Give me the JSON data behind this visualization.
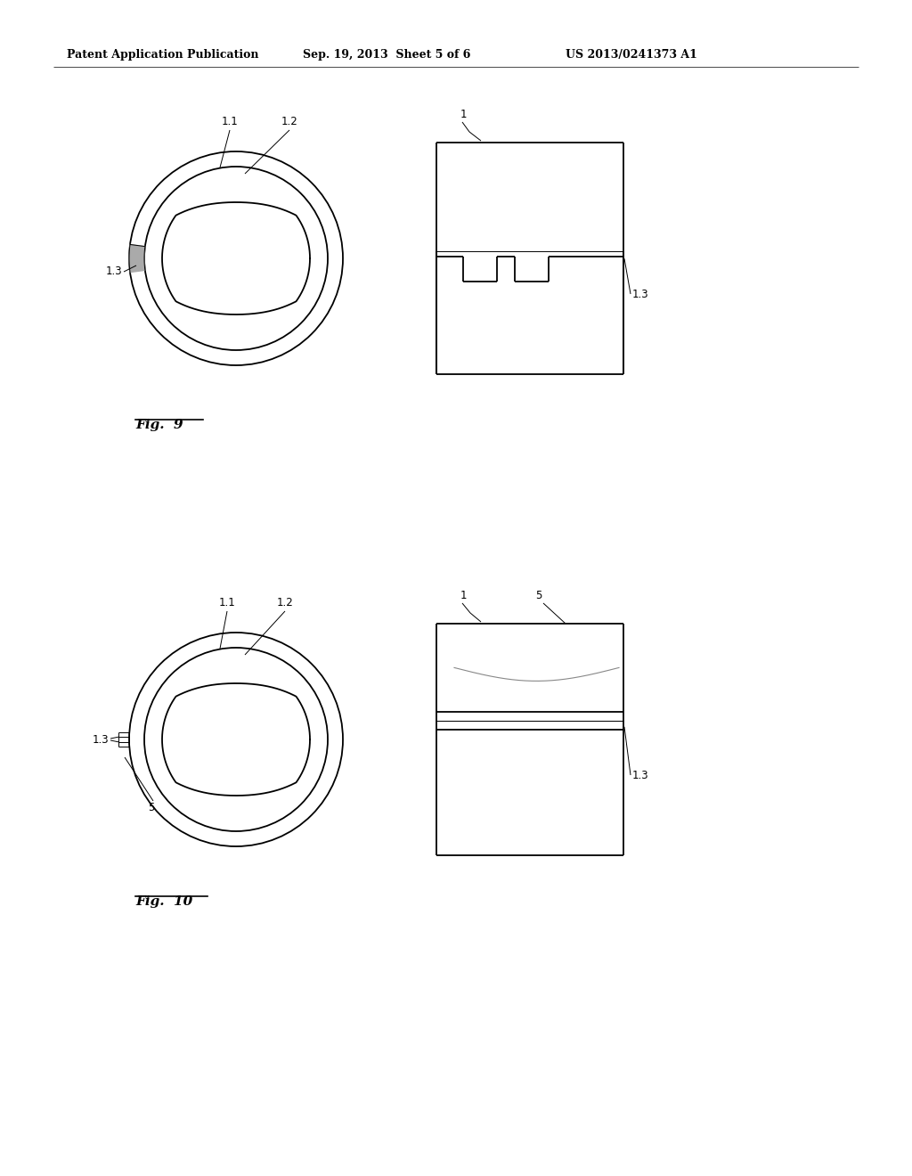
{
  "bg_color": "#ffffff",
  "line_color": "#000000",
  "header_left": "Patent Application Publication",
  "header_mid": "Sep. 19, 2013  Sheet 5 of 6",
  "header_right": "US 2013/0241373 A1",
  "fig9_label": "Fig.  9",
  "fig10_label": "Fig.  10"
}
